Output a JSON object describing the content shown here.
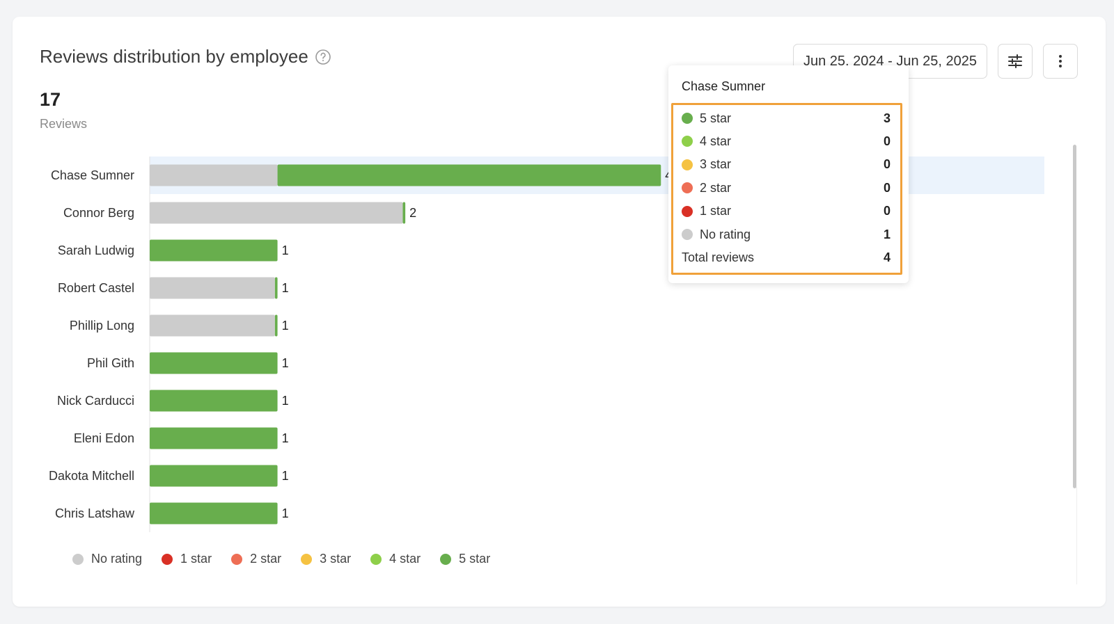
{
  "header": {
    "title": "Reviews distribution by employee",
    "total_count": "17",
    "total_label": "Reviews"
  },
  "toolbar": {
    "date_range": "Jun 25, 2024 - Jun 25, 2025",
    "filter_icon": "sliders-icon",
    "more_icon": "vertical-dots-icon"
  },
  "colors": {
    "no_rating": "#cccccc",
    "star1": "#d93025",
    "star2": "#ee6e55",
    "star3": "#f5c242",
    "star4": "#8ecf4a",
    "star5": "#68ae4d",
    "highlight": "#ebf3fc",
    "tooltip_border": "#f0a13a"
  },
  "chart_data": {
    "type": "bar",
    "orientation": "horizontal",
    "stacked": true,
    "title": "Reviews distribution by employee",
    "categories": [
      "Chase Sumner",
      "Connor Berg",
      "Sarah Ludwig",
      "Robert Castel",
      "Phillip Long",
      "Phil Gith",
      "Nick Carducci",
      "Eleni Edon",
      "Dakota Mitchell",
      "Chris Latshaw"
    ],
    "series": [
      {
        "name": "No rating",
        "color": "#cccccc",
        "values": [
          1,
          1.98,
          0,
          0.98,
          0.98,
          0,
          0,
          0,
          0,
          0
        ]
      },
      {
        "name": "1 star",
        "color": "#d93025",
        "values": [
          0,
          0,
          0,
          0,
          0,
          0,
          0,
          0,
          0,
          0
        ]
      },
      {
        "name": "2 star",
        "color": "#ee6e55",
        "values": [
          0,
          0,
          0,
          0,
          0,
          0,
          0,
          0,
          0,
          0
        ]
      },
      {
        "name": "3 star",
        "color": "#f5c242",
        "values": [
          0,
          0,
          0,
          0,
          0,
          0,
          0,
          0,
          0,
          0
        ]
      },
      {
        "name": "4 star",
        "color": "#8ecf4a",
        "values": [
          0,
          0,
          0,
          0,
          0,
          0,
          0,
          0,
          0,
          0
        ]
      },
      {
        "name": "5 star",
        "color": "#68ae4d",
        "values": [
          3,
          0.02,
          1,
          0.02,
          0.02,
          1,
          1,
          1,
          1,
          1
        ]
      }
    ],
    "totals": [
      "4",
      "2",
      "1",
      "1",
      "1",
      "1",
      "1",
      "1",
      "1",
      "1"
    ],
    "xlim": [
      0,
      7
    ],
    "highlighted_index": 0,
    "legend_position": "bottom",
    "grid": false
  },
  "tooltip": {
    "title": "Chase Sumner",
    "rows": [
      {
        "label": "5 star",
        "value": "3",
        "color": "#68ae4d"
      },
      {
        "label": "4 star",
        "value": "0",
        "color": "#8ecf4a"
      },
      {
        "label": "3 star",
        "value": "0",
        "color": "#f5c242"
      },
      {
        "label": "2 star",
        "value": "0",
        "color": "#ee6e55"
      },
      {
        "label": "1 star",
        "value": "0",
        "color": "#d93025"
      },
      {
        "label": "No rating",
        "value": "1",
        "color": "#cccccc"
      }
    ],
    "total_label": "Total reviews",
    "total_value": "4"
  },
  "legend": [
    {
      "label": "No rating",
      "color": "#cccccc"
    },
    {
      "label": "1 star",
      "color": "#d93025"
    },
    {
      "label": "2 star",
      "color": "#ee6e55"
    },
    {
      "label": "3 star",
      "color": "#f5c242"
    },
    {
      "label": "4 star",
      "color": "#8ecf4a"
    },
    {
      "label": "5 star",
      "color": "#68ae4d"
    }
  ]
}
